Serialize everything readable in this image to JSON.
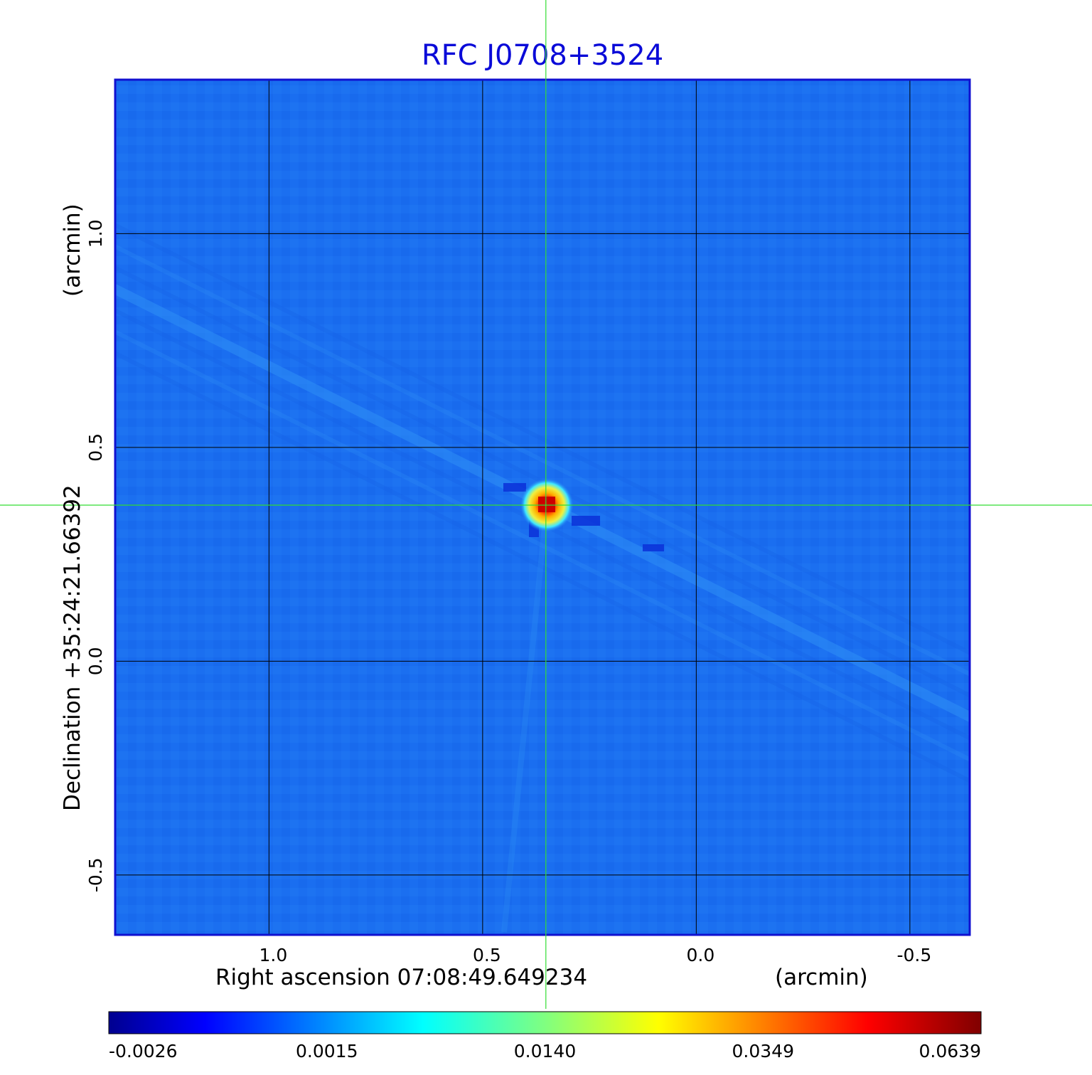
{
  "chart_data": {
    "type": "heatmap",
    "title": "RFC J0708+3524",
    "xlabel": "Right ascension  07:08:49.649234",
    "xunit": "(arcmin)",
    "ylabel": "Declination  +35:24:21.66392",
    "yunit": "(arcmin)",
    "x_ticks": [
      "1.0",
      "0.5",
      "0.0",
      "-0.5"
    ],
    "x_tick_values": [
      1.0,
      0.5,
      0.0,
      -0.5
    ],
    "y_ticks": [
      "1.0",
      "0.5",
      "0.0",
      "-0.5"
    ],
    "y_tick_values": [
      1.0,
      0.5,
      0.0,
      -0.5
    ],
    "xlim": [
      1.36,
      -0.64
    ],
    "ylim": [
      -0.64,
      1.36
    ],
    "grid": true,
    "peak": {
      "x": 0.35,
      "y": 0.365,
      "value": 0.0639
    },
    "crosshair": {
      "x": 0.352,
      "y": 0.365
    },
    "colorbar": {
      "colormap": "jet",
      "tick_labels": [
        "-0.0026",
        "0.0015",
        "0.0140",
        "0.0349",
        "0.0639"
      ],
      "tick_values": [
        -0.0026,
        0.0015,
        0.014,
        0.0349,
        0.0639
      ]
    },
    "colors": {
      "title": "#0a0ad8",
      "frame": "#1010d0",
      "background_map": "#1a6ef0",
      "crosshair": "#33dd33"
    }
  }
}
